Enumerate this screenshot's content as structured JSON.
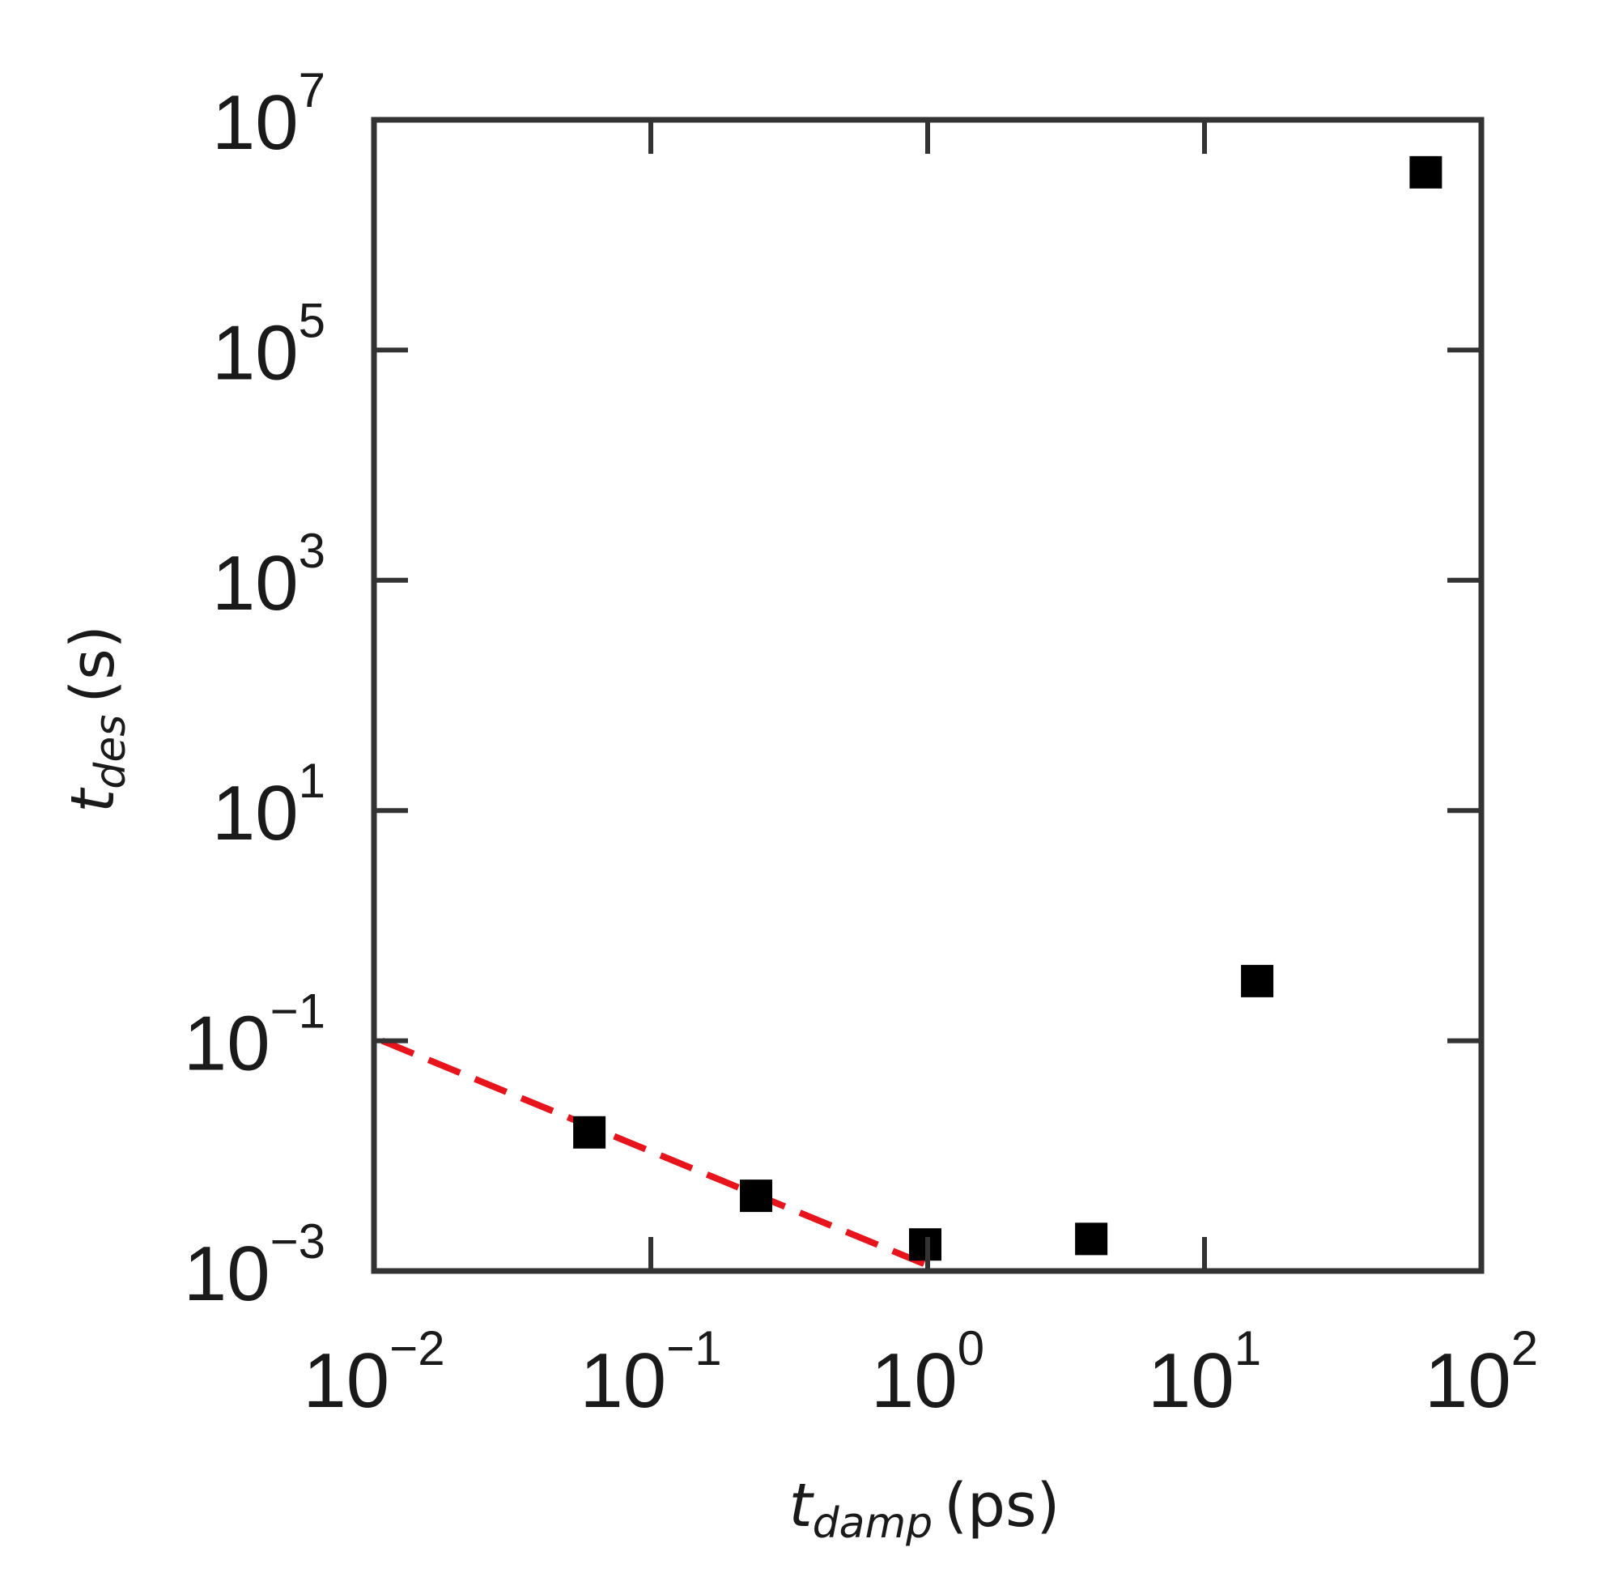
{
  "chart_data": {
    "type": "scatter",
    "title": "",
    "xlabel": {
      "symbol": "t",
      "subscript": "damp",
      "unit": "(ps)"
    },
    "ylabel": {
      "symbol": "t",
      "subscript": "des",
      "unit": "(s)"
    },
    "x_scale": "log",
    "y_scale": "log",
    "xlim": [
      0.01,
      100
    ],
    "ylim": [
      0.001,
      10000000
    ],
    "x_ticks": [
      {
        "base": "10",
        "exp": "−2",
        "value": 0.01
      },
      {
        "base": "10",
        "exp": "−1",
        "value": 0.1
      },
      {
        "base": "10",
        "exp": "0",
        "value": 1
      },
      {
        "base": "10",
        "exp": "1",
        "value": 10
      },
      {
        "base": "10",
        "exp": "2",
        "value": 100
      }
    ],
    "y_ticks": [
      {
        "base": "10",
        "exp": "−3",
        "value": 0.001
      },
      {
        "base": "10",
        "exp": "−1",
        "value": 0.1
      },
      {
        "base": "10",
        "exp": "1",
        "value": 10
      },
      {
        "base": "10",
        "exp": "3",
        "value": 1000
      },
      {
        "base": "10",
        "exp": "5",
        "value": 100000
      },
      {
        "base": "10",
        "exp": "7",
        "value": 10000000
      }
    ],
    "grid": false,
    "legend": "none",
    "series": [
      {
        "kind": "points",
        "marker": "square",
        "color": "#000000",
        "x": [
          0.06,
          0.24,
          0.98,
          3.9,
          15.5,
          63
        ],
        "y": [
          0.016,
          0.0045,
          0.0017,
          0.0019,
          0.33,
          3500000
        ]
      },
      {
        "kind": "dashed-line",
        "color": "#e8141c",
        "x": [
          0.0107,
          1.0
        ],
        "y": [
          0.1,
          0.00112
        ]
      }
    ]
  }
}
